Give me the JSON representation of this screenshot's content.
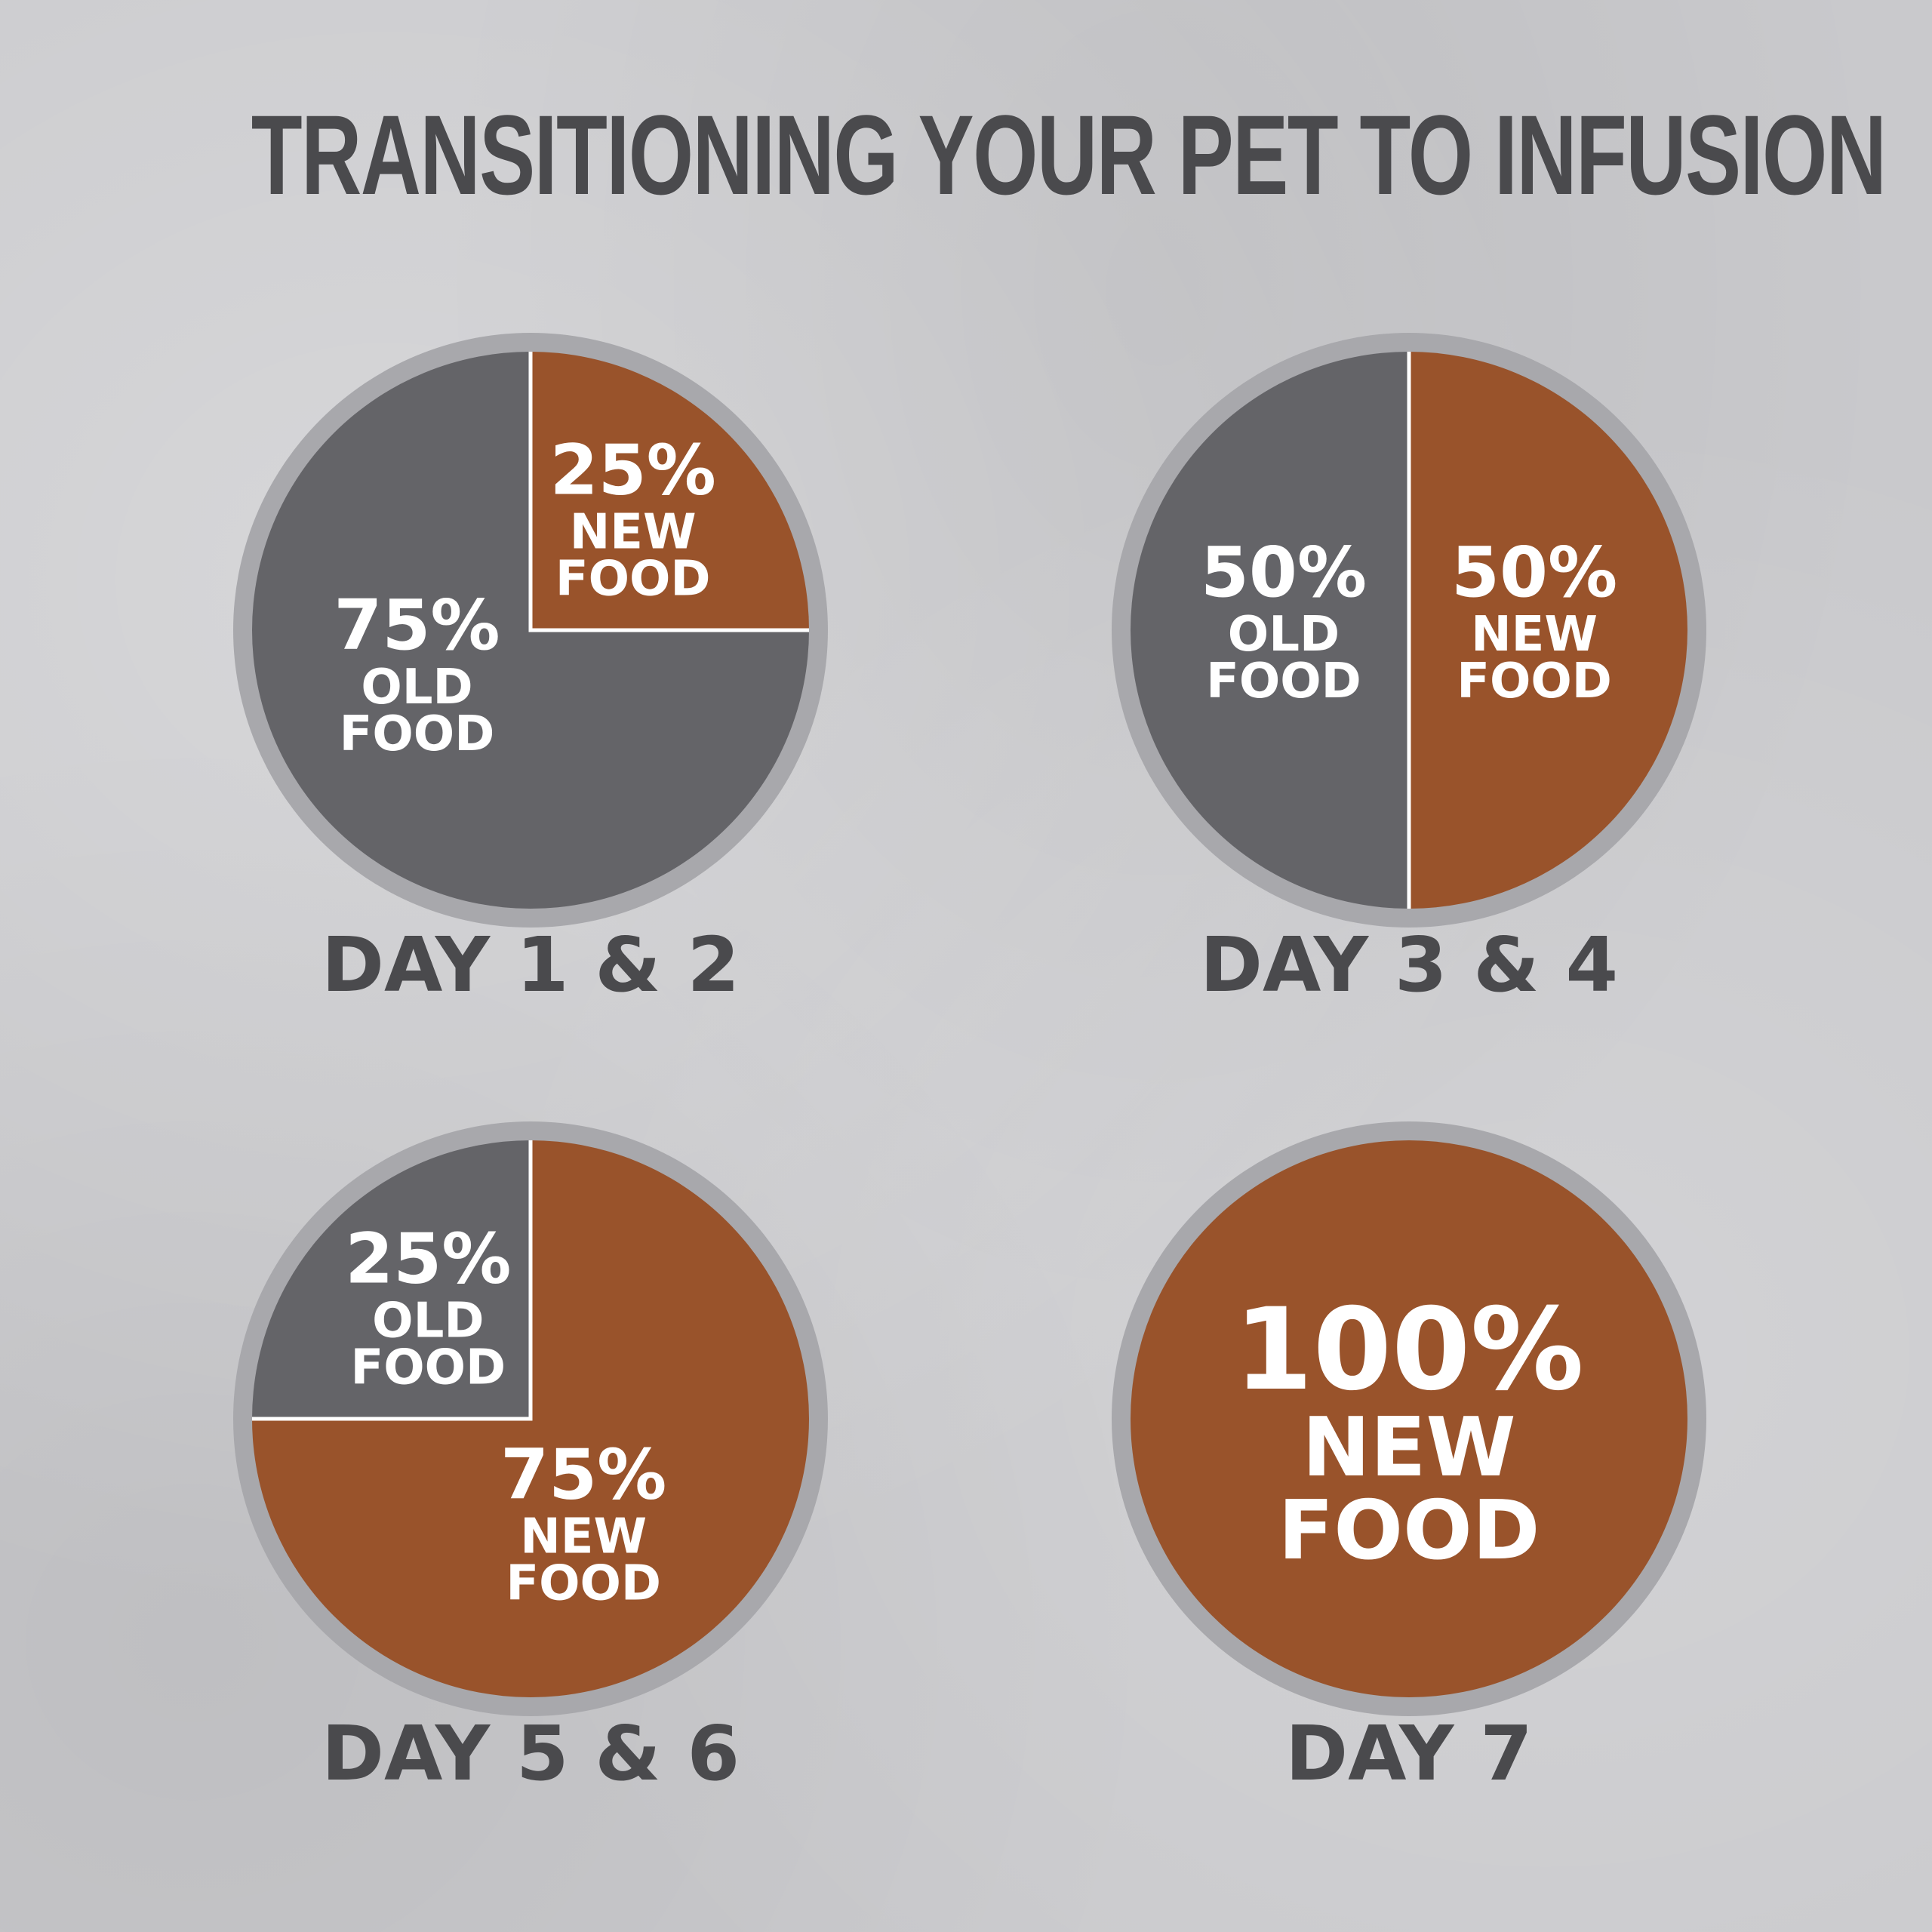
{
  "title": "TRANSITIONING YOUR PET TO INFUSION",
  "colors": {
    "old_food": "#646468",
    "new_food": "#99532b",
    "ring": "#a8a8ac",
    "text": "#4a4a4d"
  },
  "chart_data": [
    {
      "type": "pie",
      "title": "DAY 1 & 2",
      "slices": [
        {
          "name": "NEW FOOD",
          "value": 25,
          "pct_label": "25%",
          "line1": "NEW",
          "line2": "FOOD"
        },
        {
          "name": "OLD FOOD",
          "value": 75,
          "pct_label": "75%",
          "line1": "OLD",
          "line2": "FOOD"
        }
      ]
    },
    {
      "type": "pie",
      "title": "DAY 3 & 4",
      "slices": [
        {
          "name": "NEW FOOD",
          "value": 50,
          "pct_label": "50%",
          "line1": "NEW",
          "line2": "FOOD"
        },
        {
          "name": "OLD FOOD",
          "value": 50,
          "pct_label": "50%",
          "line1": "OLD",
          "line2": "FOOD"
        }
      ]
    },
    {
      "type": "pie",
      "title": "DAY 5 & 6",
      "slices": [
        {
          "name": "NEW FOOD",
          "value": 75,
          "pct_label": "75%",
          "line1": "NEW",
          "line2": "FOOD"
        },
        {
          "name": "OLD FOOD",
          "value": 25,
          "pct_label": "25%",
          "line1": "OLD",
          "line2": "FOOD"
        }
      ]
    },
    {
      "type": "pie",
      "title": "DAY 7",
      "slices": [
        {
          "name": "NEW FOOD",
          "value": 100,
          "pct_label": "100%",
          "line1": "NEW",
          "line2": "FOOD"
        }
      ]
    }
  ]
}
